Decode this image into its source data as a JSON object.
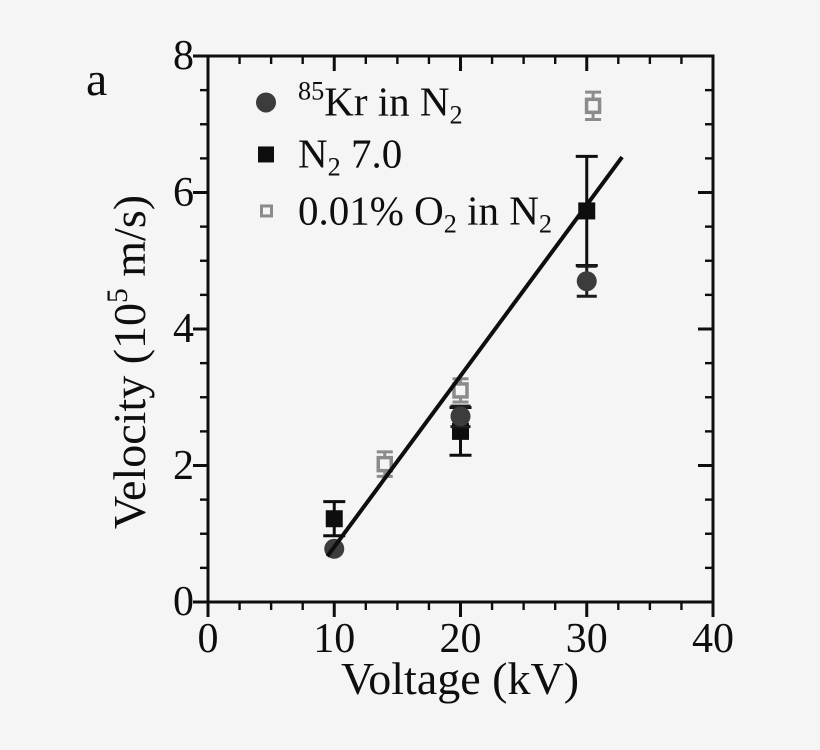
{
  "panel_label": "a",
  "colors": {
    "background": "#f5f5f5",
    "axis": "#0e0e0e",
    "kr_circle": "#3c3c3c",
    "kr_error": "#1c1c1c",
    "n2_square": "#0e0e0e",
    "o2_gray": "#8b8b8b",
    "fit_line": "#0e0e0e"
  },
  "chart_data": {
    "type": "scatter",
    "title": "",
    "xlabel": "Voltage (kV)",
    "ylabel_plain": "Velocity (10^5 m/s)",
    "ylabel_segments": [
      {
        "t": "Velocity (10"
      },
      {
        "t": "5",
        "style": "sup"
      },
      {
        "t": " m/s)"
      }
    ],
    "xlim": [
      0,
      40
    ],
    "ylim": [
      0,
      8
    ],
    "x_major_ticks": [
      0,
      10,
      20,
      30,
      40
    ],
    "x_minor_step": 2.5,
    "y_major_ticks": [
      0,
      2,
      4,
      6,
      8
    ],
    "y_minor_step": 0.5,
    "grid": false,
    "legend_position": "top-left-inside",
    "series": [
      {
        "name": "85Kr in N2",
        "legend_segments": [
          {
            "t": "85",
            "style": "sup"
          },
          {
            "t": "Kr in N"
          },
          {
            "t": "2",
            "style": "sub"
          }
        ],
        "marker": "filled-circle",
        "color": "#3c3c3c",
        "error_color": "#1c1c1c",
        "cap_width": 20,
        "points": [
          {
            "x": 10,
            "y": 0.78,
            "err": 0
          },
          {
            "x": 20,
            "y": 2.72,
            "err": 0.15
          },
          {
            "x": 30,
            "y": 4.7,
            "err": 0.22
          }
        ]
      },
      {
        "name": "N2 7.0",
        "legend_segments": [
          {
            "t": "N"
          },
          {
            "t": "2",
            "style": "sub"
          },
          {
            "t": " 7.0"
          }
        ],
        "marker": "filled-square",
        "color": "#0e0e0e",
        "error_color": "#0e0e0e",
        "cap_width": 22,
        "points": [
          {
            "x": 10,
            "y": 1.22,
            "err": 0.25
          },
          {
            "x": 20,
            "y": 2.5,
            "err": 0.35
          },
          {
            "x": 30,
            "y": 5.73,
            "err": 0.8
          }
        ]
      },
      {
        "name": "0.01% O2 in N2",
        "legend_segments": [
          {
            "t": "0.01% O"
          },
          {
            "t": "2",
            "style": "sub"
          },
          {
            "t": " in N"
          },
          {
            "t": "2",
            "style": "sub"
          }
        ],
        "marker": "open-square",
        "color": "#8b8b8b",
        "error_color": "#8b8b8b",
        "cap_width": 16,
        "points": [
          {
            "x": 14,
            "y": 2.02,
            "err": 0.18
          },
          {
            "x": 20,
            "y": 3.1,
            "err": 0.17
          },
          {
            "x": 30.5,
            "y": 7.27,
            "err": 0.2
          }
        ]
      }
    ],
    "fit_line": {
      "x1": 9.45,
      "y1": 0.67,
      "x2": 32.8,
      "y2": 6.52
    }
  }
}
